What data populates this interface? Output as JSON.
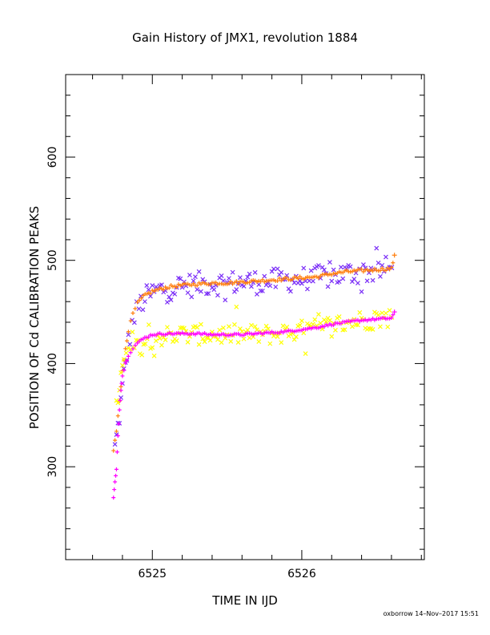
{
  "chart_data": {
    "type": "scatter",
    "title": "Gain History of JMX1, revolution 1884",
    "xlabel": "TIME IN IJD",
    "ylabel": "POSITION OF Cd CALIBRATION PEAKS",
    "xlim": [
      6524.42,
      6526.82
    ],
    "ylim": [
      210,
      680
    ],
    "x_ticks": [
      6525,
      6526
    ],
    "y_ticks": [
      300,
      400,
      500,
      600
    ],
    "grid": false,
    "legend": "none",
    "series": [
      {
        "marker": "x",
        "color": "#7b2ff7",
        "noise": 12,
        "points": [
          [
            6524.75,
            318
          ],
          [
            6524.77,
            338
          ],
          [
            6524.79,
            362
          ],
          [
            6524.81,
            388
          ],
          [
            6524.83,
            410
          ],
          [
            6524.85,
            428
          ],
          [
            6524.88,
            445
          ],
          [
            6524.91,
            455
          ],
          [
            6524.95,
            463
          ],
          [
            6525.0,
            468
          ],
          [
            6525.05,
            471
          ],
          [
            6525.1,
            473
          ],
          [
            6525.2,
            475
          ],
          [
            6525.3,
            477
          ],
          [
            6525.4,
            478
          ],
          [
            6525.5,
            478
          ],
          [
            6525.6,
            479
          ],
          [
            6525.7,
            479
          ],
          [
            6525.8,
            480
          ],
          [
            6525.9,
            481
          ],
          [
            6526.0,
            482
          ],
          [
            6526.1,
            483
          ],
          [
            6526.2,
            485
          ],
          [
            6526.3,
            487
          ],
          [
            6526.4,
            489
          ],
          [
            6526.5,
            490
          ],
          [
            6526.6,
            493
          ]
        ]
      },
      {
        "marker": "plus",
        "color": "#ff7f0e",
        "noise": 1.5,
        "points": [
          [
            6524.74,
            315
          ],
          [
            6524.76,
            335
          ],
          [
            6524.78,
            365
          ],
          [
            6524.8,
            392
          ],
          [
            6524.82,
            415
          ],
          [
            6524.84,
            432
          ],
          [
            6524.87,
            448
          ],
          [
            6524.9,
            458
          ],
          [
            6524.94,
            465
          ],
          [
            6525.0,
            470
          ],
          [
            6525.05,
            472
          ],
          [
            6525.1,
            474
          ],
          [
            6525.2,
            476
          ],
          [
            6525.3,
            477
          ],
          [
            6525.4,
            478
          ],
          [
            6525.5,
            478
          ],
          [
            6525.6,
            479
          ],
          [
            6525.7,
            480
          ],
          [
            6525.8,
            481
          ],
          [
            6525.9,
            482
          ],
          [
            6526.0,
            483
          ],
          [
            6526.1,
            484
          ],
          [
            6526.2,
            487
          ],
          [
            6526.3,
            489
          ],
          [
            6526.4,
            490
          ],
          [
            6526.5,
            491
          ],
          [
            6526.6,
            492
          ],
          [
            6526.62,
            505
          ]
        ]
      },
      {
        "marker": "x",
        "color": "#ffff00",
        "noise": 10,
        "points": [
          [
            6524.76,
            355
          ],
          [
            6524.78,
            380
          ],
          [
            6524.81,
            400
          ],
          [
            6524.84,
            410
          ],
          [
            6524.88,
            415
          ],
          [
            6524.93,
            420
          ],
          [
            6525.0,
            425
          ],
          [
            6525.1,
            427
          ],
          [
            6525.2,
            428
          ],
          [
            6525.3,
            428
          ],
          [
            6525.4,
            428
          ],
          [
            6525.5,
            428
          ],
          [
            6525.6,
            428
          ],
          [
            6525.7,
            428
          ],
          [
            6525.8,
            428
          ],
          [
            6525.9,
            430
          ],
          [
            6526.0,
            432
          ],
          [
            6526.1,
            434
          ],
          [
            6526.2,
            437
          ],
          [
            6526.3,
            440
          ],
          [
            6526.4,
            442
          ],
          [
            6526.5,
            443
          ],
          [
            6526.6,
            445
          ]
        ]
      },
      {
        "marker": "plus",
        "color": "#ff00ff",
        "noise": 1,
        "points": [
          [
            6524.74,
            270
          ],
          [
            6524.75,
            285
          ],
          [
            6524.76,
            297
          ],
          [
            6524.77,
            330
          ],
          [
            6524.78,
            355
          ],
          [
            6524.79,
            375
          ],
          [
            6524.8,
            388
          ],
          [
            6524.82,
            400
          ],
          [
            6524.84,
            408
          ],
          [
            6524.87,
            415
          ],
          [
            6524.9,
            420
          ],
          [
            6524.95,
            425
          ],
          [
            6525.0,
            428
          ],
          [
            6525.1,
            429
          ],
          [
            6525.2,
            429
          ],
          [
            6525.3,
            429
          ],
          [
            6525.4,
            428
          ],
          [
            6525.5,
            428
          ],
          [
            6525.6,
            428
          ],
          [
            6525.7,
            429
          ],
          [
            6525.8,
            430
          ],
          [
            6525.9,
            431
          ],
          [
            6526.0,
            433
          ],
          [
            6526.1,
            435
          ],
          [
            6526.2,
            438
          ],
          [
            6526.3,
            440
          ],
          [
            6526.4,
            442
          ],
          [
            6526.5,
            443
          ],
          [
            6526.6,
            444
          ],
          [
            6526.62,
            450
          ]
        ]
      }
    ]
  },
  "footer": "oxborrow 14–Nov–2017 15:51"
}
